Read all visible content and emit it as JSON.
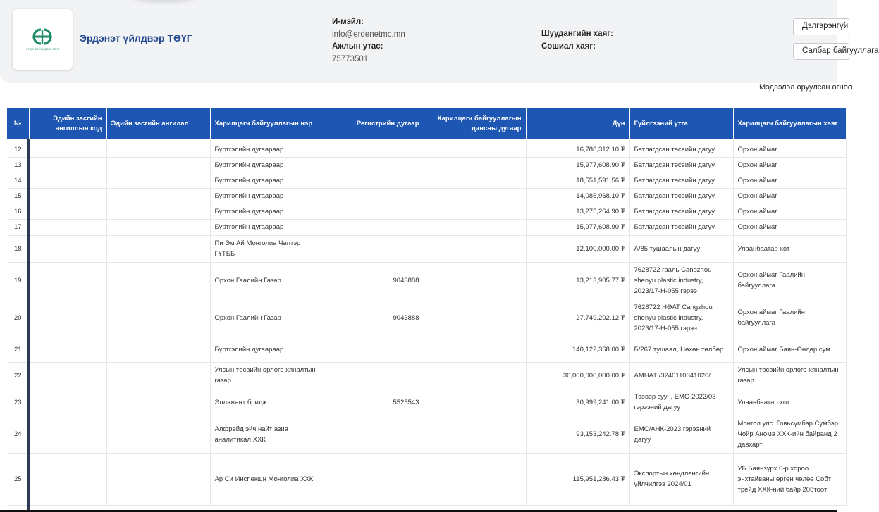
{
  "company": {
    "name": "Эрдэнэт үйлдвэр ТӨҮГ",
    "logo_caption": "ЭРДЭНЭТ ҮЙЛДВЭР ТӨҮГ",
    "brand_color": "#1d8a6a"
  },
  "contact": {
    "email_label": "И-мэйл:",
    "email": "info@erdenetmc.mn",
    "phone_label": "Ажлын утас:",
    "phone": "75773501",
    "fax_label": "Шуудангийн хаяг:",
    "social_label": "Сошиал хаяг:"
  },
  "buttons": {
    "details": "Дэлгэрэнгүй",
    "branch": "Салбар байгууллага"
  },
  "updated_label": "Мэдээлэл оруулсан огноо",
  "table": {
    "header_color": "#1d56b3",
    "headers": {
      "no": "№",
      "class_code": "Эдийн засгийн ангиллын код",
      "class": "Эдийн засгийн ангилал",
      "partner": "Харилцагч байгууллагын нэр",
      "register": "Регистрийн дугаар",
      "account": "Харилцагч байгууллагын дансны дугаар",
      "amount": "Дүн",
      "purpose": "Гүйлгээний утга",
      "address": "Харилцагч байгууллагын хаяг"
    },
    "rows": [
      {
        "no": "12",
        "partner": "Бүртгэлийн дугаараар",
        "register": "",
        "amount": "16,788,312.10 ₮",
        "purpose": "Батлагдсан төсвийн дагуу",
        "address": "Орхон аймаг"
      },
      {
        "no": "13",
        "partner": "Бүртгэлийн дугаараар",
        "register": "",
        "amount": "15,977,608.90 ₮",
        "purpose": "Батлагдсан төсвийн дагуу",
        "address": "Орхон аймаг"
      },
      {
        "no": "14",
        "partner": "Бүртгэлийн дугаараар",
        "register": "",
        "amount": "18,551,591.56 ₮",
        "purpose": "Батлагдсан төсвийн дагуу",
        "address": "Орхон аймаг"
      },
      {
        "no": "15",
        "partner": "Бүртгэлийн дугаараар",
        "register": "",
        "amount": "14,085,968.10 ₮",
        "purpose": "Батлагдсан төсвийн дагуу",
        "address": "Орхон аймаг"
      },
      {
        "no": "16",
        "partner": "Бүртгэлийн дугаараар",
        "register": "",
        "amount": "13,275,264.90 ₮",
        "purpose": "Батлагдсан төсвийн дагуу",
        "address": "Орхон аймаг"
      },
      {
        "no": "17",
        "partner": "Бүртгэлийн дугаараар",
        "register": "",
        "amount": "15,977,608.90 ₮",
        "purpose": "Батлагдсан төсвийн дагуу",
        "address": "Орхон аймаг"
      },
      {
        "no": "18",
        "partner": "Пи Эм Ай Монголиа Чаптэр ГҮТББ",
        "register": "",
        "amount": "12,100,000.00 ₮",
        "purpose": "А/85 тушаалын дагуу",
        "address": "Улаанбаатар хот"
      },
      {
        "no": "19",
        "partner": "Орхон Гаалийн Газар",
        "register": "9043888",
        "amount": "13,213,905.77 ₮",
        "purpose": "7628722 гааль Cangzhou shenyu plastic industry, 2023/17-Н-055 гэрээ",
        "address": "Орхон аймаг Гаалийн байгууллага"
      },
      {
        "no": "20",
        "partner": "Орхон Гаалийн Газар",
        "register": "9043888",
        "amount": "27,749,202.12 ₮",
        "purpose": "7628722 НӨАТ Cangzhou shenyu plastic industry, 2023/17-Н-055 гэрээ",
        "address": "Орхон аймаг Гаалийн байгууллага"
      },
      {
        "no": "21",
        "partner": "Бүртгэлийн дугаараар",
        "register": "",
        "amount": "140,122,368.00 ₮",
        "purpose": "Б/267 тушаал, Нөхөн төлбөр",
        "address": "Орхон аймаг Баян-Өндөр сум"
      },
      {
        "no": "22",
        "partner": "Улсын төсвийн орлого хяналтын газар",
        "register": "",
        "amount": "30,000,000,000.00 ₮",
        "purpose": "АМНАТ /3240110341020/",
        "address": "Улсын төсвийн орлого хяналтын газар"
      },
      {
        "no": "23",
        "partner": "Эллэжант бридж",
        "register": "5525543",
        "amount": "30,999,241.00 ₮",
        "purpose": "Тээвэр зууч, ЕМС-2022/03 гэрээний дагуу",
        "address": "Улаанбаатар хот"
      },
      {
        "no": "24",
        "partner": "Алфрейд эйч найт азиа аналитикал ХХК",
        "register": "",
        "amount": "93,153,242.78 ₮",
        "purpose": "ЕМС/АНК-2023 гэрээний дагуу",
        "address": "Монгол улс. Говьсүмбэр Сүмбэр Чойр Аномa ХХК-ийн байранд 2 давхарт"
      },
      {
        "no": "25",
        "partner": "Ар Си Инспекшн Монголиа ХХК",
        "register": "",
        "amount": "115,951,286.43 ₮",
        "purpose": "Экспортын хөндлөнгийн үйлчилгээ 2024/01",
        "address": "УБ Баянзүрх 6-р хороо энхтайваны өргөн чөлөө Собт трейд ХХК-ний байр 208тоот"
      }
    ]
  }
}
